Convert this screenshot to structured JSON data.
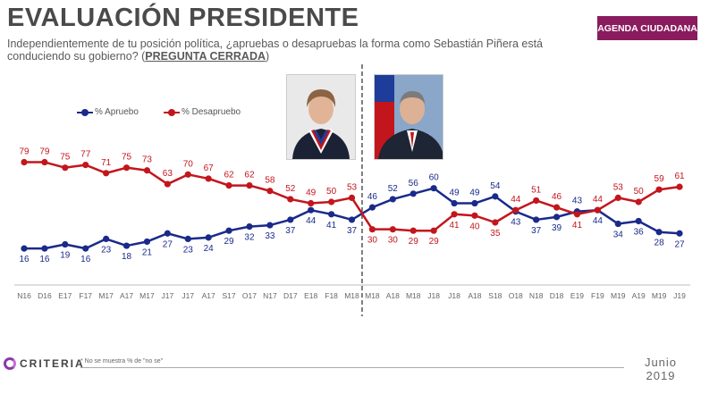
{
  "header": {
    "title": "EVALUACIÓN PRESIDENTE",
    "badge": "AGENDA CIUDADANA",
    "subtitle_main": "Independientemente de tu posición política, ¿apruebas o desapruebas la forma como Sebastián Piñera está conduciendo su gobierno? (",
    "subtitle_emph": "PREGUNTA CERRADA",
    "subtitle_end": ")"
  },
  "legend": {
    "approve": "% Apruebo",
    "disapprove": "% Desapruebo"
  },
  "colors": {
    "approve": "#1a2a8a",
    "disapprove": "#c3161c",
    "brand": "#8a1b5e"
  },
  "photos": [
    {
      "person": "Michelle Bachelet"
    },
    {
      "person": "Sebastián Piñera"
    }
  ],
  "chart_data": {
    "type": "line",
    "title": "EVALUACIÓN PRESIDENTE",
    "categories": [
      "N16",
      "D16",
      "E17",
      "F17",
      "M17",
      "A17",
      "M17",
      "J17",
      "J17",
      "A17",
      "S17",
      "O17",
      "N17",
      "D17",
      "E18",
      "F18",
      "M18",
      "M18",
      "A18",
      "M18",
      "J18",
      "J18",
      "A18",
      "S18",
      "O18",
      "N18",
      "D18",
      "E19",
      "F19",
      "M19",
      "A19",
      "M19",
      "J19"
    ],
    "series": [
      {
        "name": "% Apruebo",
        "values": [
          16,
          16,
          19,
          16,
          23,
          18,
          21,
          27,
          23,
          24,
          29,
          32,
          33,
          37,
          44,
          41,
          37,
          46,
          52,
          56,
          60,
          49,
          49,
          54,
          43,
          37,
          39,
          43,
          44,
          34,
          36,
          28,
          27
        ]
      },
      {
        "name": "% Desapruebo",
        "values": [
          79,
          79,
          75,
          77,
          71,
          75,
          73,
          63,
          70,
          67,
          62,
          62,
          58,
          52,
          49,
          50,
          53,
          30,
          30,
          29,
          29,
          41,
          40,
          35,
          44,
          51,
          46,
          41,
          44,
          53,
          50,
          59,
          61
        ]
      }
    ],
    "ylim": [
      5,
      95
    ],
    "grid": false,
    "legend_position": "top-left",
    "annotation": "dashed vertical separator between M18 (Bachelet) and M18 (Piñera)"
  },
  "footer": {
    "brand": "CRITERIA",
    "footnote": "* No se muestra % de \"no se\"",
    "month": "Junio",
    "year": "2019"
  }
}
